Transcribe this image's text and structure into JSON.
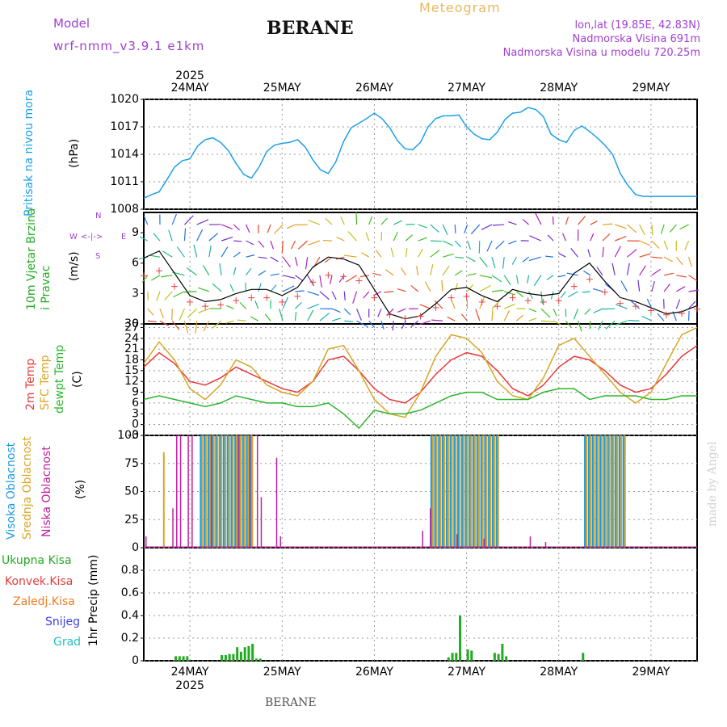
{
  "header": {
    "model_label": "Model",
    "model_name": "wrf-nmm_v3.9.1  e1km",
    "station_title": "BERANE",
    "meteogram_label": "Meteogram",
    "lonlat": "lon,lat (19.85E, 42.83N)",
    "altitude": "Nadmorska Visina 691m",
    "model_altitude": "Nadmorska Visina u modelu 720.25m"
  },
  "footer": {
    "station": "BERANE",
    "watermark": "made by Angel"
  },
  "colors": {
    "pressure": "#1ea0e6",
    "wind_label": "#22aa22",
    "wind_label2": "#22aa22",
    "temp2m": "#e83a3a",
    "sfc": "#d9a524",
    "dewpt": "#2ab52a",
    "visoka": "#1e9be6",
    "srednja": "#d9a524",
    "niska": "#c020a0",
    "ukupna": "#22aa22",
    "konvek": "#e83a3a",
    "zaledj": "#f07a20",
    "snijeg": "#4040e0",
    "grad": "#20c0c0"
  },
  "chart_data": [
    {
      "type": "line",
      "title": "Pritisak na nivou mora",
      "ylabel": "(hPa)",
      "year": "2025",
      "day_labels": [
        "24MAY",
        "25MAY",
        "26MAY",
        "27MAY",
        "28MAY",
        "29MAY"
      ],
      "ylim": [
        1008,
        1020
      ],
      "yticks": [
        1008,
        1011,
        1014,
        1017,
        1020
      ],
      "x_hours": [
        0,
        2,
        4,
        6,
        8,
        10,
        12,
        14,
        16,
        18,
        20,
        22,
        24,
        26,
        28,
        30,
        32,
        34,
        36,
        38,
        40,
        42,
        44,
        46,
        48,
        50,
        52,
        54,
        56,
        58,
        60,
        62,
        64,
        66,
        68,
        70,
        72,
        74,
        76,
        78,
        80,
        82,
        84,
        86,
        88,
        90,
        92,
        94,
        96,
        98,
        100,
        102,
        104,
        106,
        108,
        110,
        112,
        114,
        116,
        118,
        120,
        122,
        124,
        126,
        128,
        130,
        132,
        134,
        136,
        138,
        140,
        142,
        144
      ],
      "values": [
        1009.2,
        1009.6,
        1009.9,
        1011.2,
        1012.6,
        1013.3,
        1013.5,
        1014.9,
        1015.6,
        1015.8,
        1015.3,
        1014.4,
        1013.0,
        1011.8,
        1011.4,
        1012.6,
        1014.3,
        1015.0,
        1015.2,
        1015.3,
        1015.6,
        1014.8,
        1013.4,
        1012.3,
        1011.9,
        1013.2,
        1015.4,
        1016.9,
        1017.4,
        1017.9,
        1018.5,
        1017.9,
        1016.9,
        1015.5,
        1014.6,
        1014.5,
        1015.3,
        1017.0,
        1017.9,
        1018.2,
        1018.2,
        1018.3,
        1017.0,
        1016.2,
        1015.7,
        1015.6,
        1016.4,
        1017.8,
        1018.5,
        1018.6,
        1019.1,
        1018.9,
        1018.1,
        1016.2,
        1015.6,
        1015.3,
        1016.6,
        1017.1,
        1016.5,
        1015.8,
        1015.0,
        1014.0,
        1011.9,
        1010.6,
        1009.6,
        1009.4,
        1009.4,
        1009.4,
        1009.4,
        1009.4,
        1009.4,
        1009.4,
        1009.4
      ]
    },
    {
      "type": "line",
      "title": "10m Vjetar Brzina i Pravac",
      "ylabel": "(m/s)",
      "ylim": [
        0,
        11
      ],
      "yticks": [
        0,
        3,
        6,
        9
      ],
      "compass": {
        "n": "N",
        "s": "S",
        "e": "E",
        "w": "W"
      },
      "x_hours": [
        0,
        4,
        8,
        12,
        16,
        20,
        24,
        28,
        32,
        36,
        40,
        44,
        48,
        52,
        56,
        60,
        64,
        68,
        72,
        76,
        80,
        84,
        88,
        92,
        96,
        100,
        104,
        108,
        112,
        116,
        120,
        124,
        128,
        132,
        136,
        140,
        144
      ],
      "values": [
        6.5,
        7.2,
        5.0,
        2.8,
        2.2,
        2.4,
        3.0,
        3.4,
        3.4,
        2.8,
        3.6,
        5.6,
        6.6,
        6.4,
        5.8,
        3.4,
        1.0,
        0.5,
        0.8,
        2.0,
        3.4,
        3.6,
        2.8,
        2.2,
        3.4,
        3.0,
        2.8,
        3.0,
        5.0,
        6.0,
        4.2,
        2.6,
        2.2,
        1.6,
        1.0,
        1.2,
        1.8
      ]
    },
    {
      "type": "line",
      "title": "2m Temp / SFC Temp / dewpt Temp",
      "ylabel": "(C)",
      "ylim": [
        -3,
        28
      ],
      "yticks": [
        -3,
        0,
        3,
        6,
        9,
        12,
        15,
        18,
        21,
        24,
        27,
        30
      ],
      "x_hours": [
        0,
        4,
        8,
        12,
        16,
        20,
        24,
        28,
        32,
        36,
        40,
        44,
        48,
        52,
        56,
        60,
        64,
        68,
        72,
        76,
        80,
        84,
        88,
        92,
        96,
        100,
        104,
        108,
        112,
        116,
        120,
        124,
        128,
        132,
        136,
        140,
        144
      ],
      "series": [
        {
          "name": "2m Temp",
          "values": [
            16,
            20,
            17,
            12,
            11,
            13,
            16,
            14,
            12,
            10,
            9,
            12,
            18,
            19,
            15,
            10,
            7,
            6,
            9,
            14,
            18,
            20,
            19,
            15,
            10,
            8,
            11,
            16,
            19,
            18,
            15,
            11,
            9,
            10,
            14,
            19,
            22
          ]
        },
        {
          "name": "SFC Temp",
          "values": [
            17,
            23,
            18,
            10,
            7,
            11,
            18,
            16,
            11,
            9,
            8,
            12,
            21,
            22,
            15,
            7,
            3,
            2,
            9,
            19,
            25,
            24,
            20,
            12,
            8,
            7,
            13,
            22,
            24,
            19,
            14,
            9,
            6,
            9,
            17,
            25,
            27
          ]
        },
        {
          "name": "dewpt Temp",
          "values": [
            7,
            8,
            7,
            6,
            5,
            6,
            8,
            7,
            6,
            6,
            5,
            5,
            6,
            3,
            -1,
            4,
            3,
            3,
            4,
            6,
            8,
            9,
            9,
            7,
            7,
            7,
            9,
            10,
            10,
            7,
            8,
            8,
            8,
            7,
            7,
            8,
            8
          ]
        }
      ]
    },
    {
      "type": "bar",
      "title": "Visoka Oblacnost / Srednja Oblacnost / Niska Oblacnost",
      "ylabel": "(%)",
      "ylim": [
        0,
        100
      ],
      "yticks": [
        0,
        25,
        50,
        75,
        100
      ],
      "series": [
        {
          "name": "Visoka Oblacnost",
          "ranges": [
            [
              15,
              28,
              100
            ],
            [
              75,
              92,
              100
            ],
            [
              115,
              125,
              100
            ]
          ]
        },
        {
          "name": "Srednja Oblacnost",
          "ranges": [
            [
              5,
              5,
              85
            ],
            [
              15,
              28,
              100
            ],
            [
              75,
              92,
              100
            ],
            [
              115,
              125,
              100
            ]
          ]
        },
        {
          "name": "Niska Oblacnost",
          "ranges": [
            [
              0,
              0,
              10
            ],
            [
              7,
              7,
              35
            ],
            [
              8,
              8,
              100
            ],
            [
              9,
              9,
              100
            ],
            [
              11,
              11,
              100
            ],
            [
              12,
              12,
              100
            ],
            [
              17,
              17,
              100
            ],
            [
              24,
              24,
              100
            ],
            [
              27,
              27,
              100
            ],
            [
              29,
              29,
              100
            ],
            [
              30,
              30,
              45
            ],
            [
              34,
              34,
              80
            ],
            [
              35,
              35,
              10
            ],
            [
              72,
              72,
              15
            ],
            [
              74,
              74,
              35
            ],
            [
              81,
              81,
              12
            ],
            [
              88,
              88,
              8
            ],
            [
              100,
              100,
              10
            ],
            [
              104,
              104,
              5
            ]
          ]
        }
      ]
    },
    {
      "type": "bar",
      "title": "Ukupna Kisa / Konvek.Kisa / Zaledj.Kisa / Snijeg / Grad",
      "ylabel": "1hr Precip (mm)",
      "ylim": [
        0,
        1.0
      ],
      "yticks": [
        0,
        0.2,
        0.4,
        0.6,
        0.8
      ],
      "legend": [
        "Ukupna Kisa",
        "Konvek.Kisa",
        "Zaledj.Kisa",
        "Snijeg",
        "Grad"
      ],
      "bars": [
        [
          8,
          0.04
        ],
        [
          9,
          0.04
        ],
        [
          10,
          0.04
        ],
        [
          11,
          0.04
        ],
        [
          20,
          0.05
        ],
        [
          21,
          0.05
        ],
        [
          22,
          0.06
        ],
        [
          23,
          0.06
        ],
        [
          24,
          0.12
        ],
        [
          25,
          0.08
        ],
        [
          26,
          0.12
        ],
        [
          27,
          0.13
        ],
        [
          28,
          0.15
        ],
        [
          29,
          0.02
        ],
        [
          30,
          0.02
        ],
        [
          79,
          0.03
        ],
        [
          80,
          0.07
        ],
        [
          81,
          0.07
        ],
        [
          82,
          0.4
        ],
        [
          84,
          0.1
        ],
        [
          85,
          0.09
        ],
        [
          91,
          0.07
        ],
        [
          92,
          0.06
        ],
        [
          93,
          0.15
        ],
        [
          94,
          0.04
        ],
        [
          114,
          0.07
        ]
      ]
    }
  ]
}
